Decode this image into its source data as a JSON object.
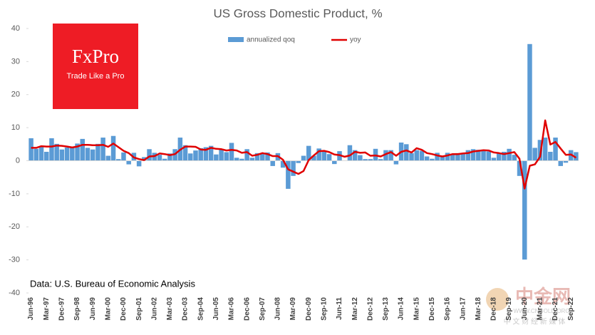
{
  "chart_data": {
    "type": "bar-line",
    "title": "US Gross Domestic Product, %",
    "annotation": "Data: U.S. Bureau of Economic Analysis",
    "logo": {
      "brand": "FxPro",
      "tagline": "Trade Like a Pro"
    },
    "watermark": {
      "name": "中金网",
      "url": "WWW.CNGOLD.ORG",
      "tagline": "中 文 财 经 新 媒 体"
    },
    "categories": [
      "Jun-96",
      null,
      null,
      "Mar-97",
      null,
      null,
      "Dec-97",
      null,
      null,
      "Sep-98",
      null,
      null,
      "Jun-99",
      null,
      null,
      "Mar-00",
      null,
      null,
      "Dec-00",
      null,
      null,
      "Sep-01",
      null,
      null,
      "Jun-02",
      null,
      null,
      "Mar-03",
      null,
      null,
      "Dec-03",
      null,
      null,
      "Sep-04",
      null,
      null,
      "Jun-05",
      null,
      null,
      "Mar-06",
      null,
      null,
      "Dec-06",
      null,
      null,
      "Sep-07",
      null,
      null,
      "Jun-08",
      null,
      null,
      "Mar-09",
      null,
      null,
      "Dec-09",
      null,
      null,
      "Sep-10",
      null,
      null,
      "Jun-11",
      null,
      null,
      "Mar-12",
      null,
      null,
      "Dec-12",
      null,
      null,
      "Sep-13",
      null,
      null,
      "Jun-14",
      null,
      null,
      "Mar-15",
      null,
      null,
      "Dec-15",
      null,
      null,
      "Sep-16",
      null,
      null,
      "Jun-17",
      null,
      null,
      "Mar-18",
      null,
      null,
      "Dec-18",
      null,
      null,
      "Sep-19",
      null,
      null,
      "Jun-20",
      null,
      null,
      "Mar-21",
      null,
      null,
      "Dec-21",
      null,
      null,
      "Sep-22",
      null
    ],
    "series": [
      {
        "name": "annualized qoq",
        "type": "bar",
        "color": "#5b9bd5",
        "values": [
          6.8,
          3.6,
          4.4,
          2.7,
          6.8,
          5.1,
          3.4,
          4.0,
          3.9,
          5.2,
          6.6,
          3.9,
          3.4,
          5.1,
          7.0,
          1.5,
          7.5,
          0.5,
          2.5,
          -1.1,
          2.4,
          -1.7,
          1.1,
          3.5,
          2.4,
          1.8,
          0.6,
          2.2,
          3.5,
          7.0,
          4.7,
          2.2,
          3.1,
          3.8,
          4.1,
          4.5,
          1.9,
          3.6,
          2.6,
          5.4,
          0.9,
          0.6,
          3.5,
          0.9,
          2.3,
          2.2,
          2.5,
          -1.6,
          2.3,
          -2.1,
          -8.5,
          -4.6,
          -0.7,
          1.5,
          4.5,
          1.5,
          3.7,
          3.0,
          2.0,
          -1.0,
          2.9,
          -0.1,
          4.7,
          3.2,
          1.7,
          0.5,
          0.5,
          3.6,
          0.5,
          3.2,
          3.2,
          -1.1,
          5.5,
          5.0,
          2.3,
          3.2,
          3.0,
          1.3,
          0.6,
          2.4,
          1.2,
          2.4,
          2.0,
          2.3,
          2.2,
          3.2,
          3.5,
          3.3,
          3.0,
          2.8,
          0.9,
          2.2,
          2.7,
          3.6,
          1.8,
          -4.6,
          -29.9,
          35.3,
          3.9,
          6.3,
          7.0,
          2.7,
          7.0,
          -1.6,
          -0.6,
          3.2,
          2.6
        ]
      },
      {
        "name": "yoy",
        "type": "line",
        "color": "#e00000",
        "values": [
          3.9,
          3.9,
          4.4,
          4.3,
          4.3,
          4.6,
          4.5,
          4.3,
          4.0,
          4.3,
          4.8,
          4.8,
          4.7,
          4.7,
          4.8,
          4.2,
          5.2,
          4.1,
          3.0,
          2.3,
          1.0,
          0.5,
          0.2,
          1.3,
          1.4,
          2.2,
          2.0,
          1.7,
          2.0,
          3.3,
          4.3,
          4.3,
          4.2,
          3.4,
          3.3,
          3.9,
          3.6,
          3.5,
          3.1,
          3.3,
          3.1,
          2.4,
          2.6,
          1.5,
          1.8,
          2.3,
          2.0,
          1.4,
          1.4,
          0.3,
          -2.6,
          -3.3,
          -4.0,
          -3.1,
          0.2,
          1.6,
          2.9,
          3.0,
          2.6,
          1.9,
          1.7,
          1.2,
          1.6,
          2.7,
          2.4,
          2.5,
          1.5,
          1.6,
          1.3,
          2.0,
          2.6,
          1.5,
          2.7,
          3.1,
          2.5,
          3.8,
          3.3,
          2.3,
          2.0,
          1.6,
          1.3,
          1.6,
          2.0,
          2.0,
          2.2,
          2.3,
          2.8,
          3.0,
          3.2,
          3.1,
          2.5,
          2.3,
          2.0,
          2.3,
          2.6,
          0.6,
          -8.4,
          -1.5,
          -1.1,
          1.2,
          12.2,
          4.9,
          5.7,
          3.7,
          1.8,
          1.9,
          0.9
        ]
      }
    ],
    "ylim": [
      -40,
      40
    ],
    "yticks": [
      -40,
      -30,
      -20,
      -10,
      0,
      10,
      20,
      30,
      40
    ],
    "grid": false,
    "legend": "top"
  }
}
